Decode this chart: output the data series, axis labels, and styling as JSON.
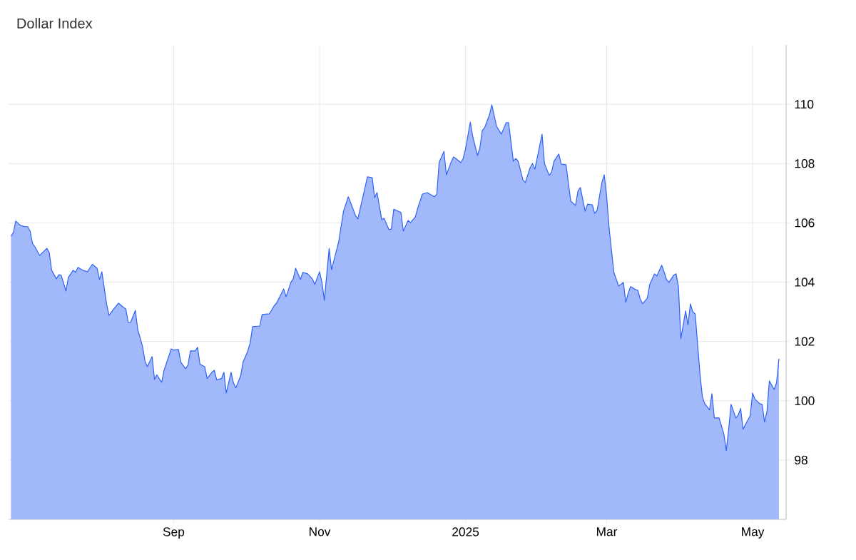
{
  "chart_data": {
    "type": "area",
    "title": "Dollar Index",
    "x": [
      "2024-06-25",
      "2024-06-26",
      "2024-06-27",
      "2024-06-29",
      "2024-07-01",
      "2024-07-02",
      "2024-07-03",
      "2024-07-04",
      "2024-07-05",
      "2024-07-07",
      "2024-07-10",
      "2024-07-11",
      "2024-07-12",
      "2024-07-14",
      "2024-07-15",
      "2024-07-16",
      "2024-07-18",
      "2024-07-19",
      "2024-07-21",
      "2024-07-22",
      "2024-07-23",
      "2024-07-25",
      "2024-07-27",
      "2024-07-29",
      "2024-07-31",
      "2024-08-01",
      "2024-08-02",
      "2024-08-04",
      "2024-08-05",
      "2024-08-07",
      "2024-08-09",
      "2024-08-11",
      "2024-08-12",
      "2024-08-13",
      "2024-08-14",
      "2024-08-16",
      "2024-08-17",
      "2024-08-19",
      "2024-08-20",
      "2024-08-21",
      "2024-08-23",
      "2024-08-24",
      "2024-08-25",
      "2024-08-27",
      "2024-08-28",
      "2024-08-31",
      "2024-09-01",
      "2024-09-03",
      "2024-09-04",
      "2024-09-06",
      "2024-09-07",
      "2024-09-08",
      "2024-09-10",
      "2024-09-11",
      "2024-09-12",
      "2024-09-14",
      "2024-09-15",
      "2024-09-17",
      "2024-09-18",
      "2024-09-19",
      "2024-09-21",
      "2024-09-22",
      "2024-09-23",
      "2024-09-25",
      "2024-09-26",
      "2024-09-27",
      "2024-09-29",
      "2024-09-30",
      "2024-10-02",
      "2024-10-03",
      "2024-10-04",
      "2024-10-07",
      "2024-10-08",
      "2024-10-11",
      "2024-10-13",
      "2024-10-14",
      "2024-10-17",
      "2024-10-18",
      "2024-10-20",
      "2024-10-21",
      "2024-10-22",
      "2024-10-24",
      "2024-10-25",
      "2024-10-27",
      "2024-10-29",
      "2024-10-30",
      "2024-11-01",
      "2024-11-02",
      "2024-11-03",
      "2024-11-05",
      "2024-11-06",
      "2024-11-09",
      "2024-11-11",
      "2024-11-13",
      "2024-11-14",
      "2024-11-16",
      "2024-11-17",
      "2024-11-21",
      "2024-11-23",
      "2024-11-24",
      "2024-11-25",
      "2024-11-27",
      "2024-11-28",
      "2024-11-30",
      "2024-12-01",
      "2024-12-02",
      "2024-12-05",
      "2024-12-06",
      "2024-12-08",
      "2024-12-09",
      "2024-12-11",
      "2024-12-12",
      "2024-12-14",
      "2024-12-16",
      "2024-12-19",
      "2024-12-20",
      "2024-12-21",
      "2024-12-23",
      "2024-12-24",
      "2024-12-26",
      "2024-12-27",
      "2024-12-28",
      "2024-12-30",
      "2024-12-31",
      "2025-01-01",
      "2025-01-03",
      "2025-01-04",
      "2025-01-06",
      "2025-01-07",
      "2025-01-08",
      "2025-01-09",
      "2025-01-11",
      "2025-01-12",
      "2025-01-14",
      "2025-01-16",
      "2025-01-18",
      "2025-01-19",
      "2025-01-21",
      "2025-01-22",
      "2025-01-23",
      "2025-01-25",
      "2025-01-26",
      "2025-01-28",
      "2025-01-29",
      "2025-01-30",
      "2025-02-02",
      "2025-02-03",
      "2025-02-05",
      "2025-02-06",
      "2025-02-07",
      "2025-02-09",
      "2025-02-10",
      "2025-02-12",
      "2025-02-14",
      "2025-02-16",
      "2025-02-17",
      "2025-02-18",
      "2025-02-20",
      "2025-02-21",
      "2025-02-23",
      "2025-02-24",
      "2025-02-25",
      "2025-02-27",
      "2025-02-28",
      "2025-03-01",
      "2025-03-02",
      "2025-03-04",
      "2025-03-06",
      "2025-03-08",
      "2025-03-09",
      "2025-03-10",
      "2025-03-11",
      "2025-03-13",
      "2025-03-14",
      "2025-03-15",
      "2025-03-16",
      "2025-03-18",
      "2025-03-19",
      "2025-03-21",
      "2025-03-22",
      "2025-03-24",
      "2025-03-25",
      "2025-03-26",
      "2025-03-27",
      "2025-03-29",
      "2025-03-30",
      "2025-03-31",
      "2025-04-01",
      "2025-04-03",
      "2025-04-04",
      "2025-04-05",
      "2025-04-06",
      "2025-04-07",
      "2025-04-09",
      "2025-04-10",
      "2025-04-11",
      "2025-04-13",
      "2025-04-14",
      "2025-04-15",
      "2025-04-17",
      "2025-04-19",
      "2025-04-20",
      "2025-04-21",
      "2025-04-22",
      "2025-04-24",
      "2025-04-25",
      "2025-04-26",
      "2025-04-27",
      "2025-04-30",
      "2025-05-01",
      "2025-05-02",
      "2025-05-04",
      "2025-05-05",
      "2025-05-06",
      "2025-05-07",
      "2025-05-08",
      "2025-05-10",
      "2025-05-11",
      "2025-05-12"
    ],
    "series": [
      {
        "color": "#2f62f6",
        "values": [
          105.55,
          105.67,
          106.06,
          105.91,
          105.87,
          105.87,
          105.72,
          105.31,
          105.19,
          104.9,
          105.14,
          105.0,
          104.4,
          104.11,
          104.25,
          104.23,
          103.7,
          104.16,
          104.4,
          104.33,
          104.5,
          104.4,
          104.35,
          104.6,
          104.47,
          104.09,
          104.35,
          103.25,
          102.88,
          103.1,
          103.29,
          103.15,
          103.1,
          102.64,
          102.64,
          103.05,
          102.4,
          101.83,
          101.35,
          101.15,
          101.49,
          100.72,
          100.87,
          100.62,
          101.03,
          101.75,
          101.71,
          101.73,
          101.3,
          101.08,
          101.2,
          101.68,
          101.68,
          101.8,
          101.23,
          101.15,
          100.75,
          100.96,
          101.03,
          100.7,
          100.75,
          100.96,
          100.26,
          100.96,
          100.6,
          100.43,
          100.84,
          101.3,
          101.68,
          101.95,
          102.5,
          102.52,
          102.91,
          102.93,
          103.2,
          103.29,
          103.77,
          103.51,
          103.99,
          104.11,
          104.47,
          104.09,
          104.33,
          104.28,
          104.11,
          103.92,
          104.35,
          103.99,
          103.39,
          105.14,
          104.42,
          105.36,
          106.39,
          106.88,
          106.68,
          106.25,
          106.13,
          107.55,
          107.52,
          106.85,
          107.02,
          106.11,
          106.15,
          105.77,
          105.79,
          106.46,
          106.35,
          105.72,
          106.08,
          106.01,
          106.2,
          106.49,
          106.97,
          107.02,
          106.88,
          106.97,
          108.05,
          108.41,
          107.62,
          108.05,
          108.22,
          108.17,
          108.03,
          108.17,
          108.49,
          109.4,
          108.92,
          108.27,
          108.53,
          109.11,
          109.21,
          109.64,
          109.98,
          109.25,
          108.99,
          109.38,
          109.38,
          108.08,
          108.17,
          108.08,
          107.45,
          107.36,
          107.86,
          108.0,
          107.81,
          108.99,
          108.0,
          107.6,
          107.72,
          108.08,
          108.32,
          107.98,
          107.96,
          106.73,
          106.59,
          107.07,
          107.19,
          106.39,
          106.63,
          106.61,
          106.32,
          106.42,
          107.36,
          107.62,
          106.88,
          105.84,
          104.33,
          103.87,
          103.99,
          103.32,
          103.63,
          103.85,
          103.75,
          103.73,
          103.44,
          103.27,
          103.46,
          103.92,
          104.28,
          104.21,
          104.57,
          104.35,
          104.09,
          103.99,
          104.23,
          104.28,
          103.85,
          102.09,
          103.03,
          102.55,
          103.27,
          103.0,
          102.93,
          100.91,
          100.14,
          99.9,
          99.69,
          100.24,
          99.42,
          99.42,
          98.87,
          98.32,
          99.04,
          99.88,
          99.42,
          99.52,
          99.74,
          99.04,
          99.5,
          100.26,
          100.05,
          99.9,
          99.88,
          99.28,
          99.64,
          100.67,
          100.38,
          100.6,
          101.42
        ]
      }
    ],
    "xlim": [
      "2024-06-24",
      "2025-05-15"
    ],
    "xticks": [
      {
        "value": "2024-09-01",
        "label": "Sep"
      },
      {
        "value": "2024-11-01",
        "label": "Nov"
      },
      {
        "value": "2025-01-01",
        "label": "2025"
      },
      {
        "value": "2025-03-01",
        "label": "Mar"
      },
      {
        "value": "2025-05-01",
        "label": "May"
      }
    ],
    "ylim": [
      96,
      112
    ],
    "yticks": [
      98,
      100,
      102,
      104,
      106,
      108,
      110
    ],
    "grid": true
  }
}
